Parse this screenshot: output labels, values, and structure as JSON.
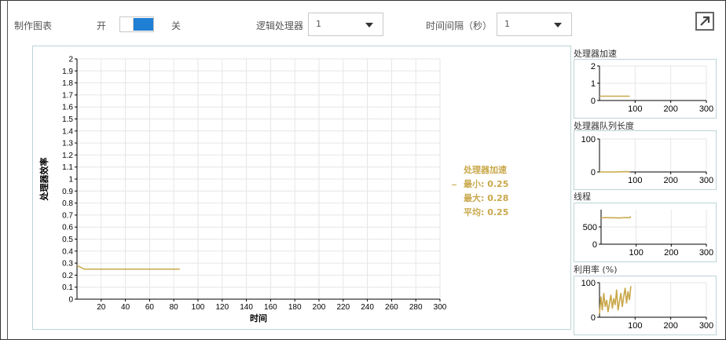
{
  "toolbar": {
    "chart_label": "制作图表",
    "toggle_on_label": "开",
    "toggle_off_label": "关",
    "processor_label": "逻辑处理器",
    "processor_value": "1",
    "interval_label": "时间间隔（秒）",
    "interval_value": "1"
  },
  "colors": {
    "series": "#c9a84b",
    "grid": "#e6e6e6",
    "panel_border": "#bcd3d6",
    "toggle_accent": "#1e7fd4"
  },
  "legend": {
    "series_name": "处理器加速",
    "min": "最小: 0.25",
    "max": "最大: 0.28",
    "avg": "平均: 0.25"
  },
  "chart_data": [
    {
      "type": "line",
      "xlabel": "时间",
      "ylabel": "处理器效率",
      "xlim": [
        0,
        300
      ],
      "ylim": [
        0,
        2
      ],
      "x_ticks": [
        20,
        40,
        60,
        80,
        100,
        120,
        140,
        160,
        180,
        200,
        220,
        240,
        260,
        280,
        300
      ],
      "y_ticks": [
        0,
        0.1,
        0.2,
        0.3,
        0.4,
        0.5,
        0.6,
        0.7,
        0.8,
        0.9,
        1,
        1.1,
        1.2,
        1.3,
        1.4,
        1.5,
        1.6,
        1.7,
        1.8,
        1.9,
        2
      ],
      "grid": true,
      "series": [
        {
          "name": "处理器加速",
          "x": [
            0,
            2,
            4,
            6,
            10,
            20,
            40,
            60,
            80,
            85
          ],
          "y": [
            0.28,
            0.27,
            0.26,
            0.25,
            0.25,
            0.25,
            0.25,
            0.25,
            0.25,
            0.25
          ]
        }
      ]
    },
    {
      "type": "line",
      "title": "处理器加速",
      "xlim": [
        0,
        300
      ],
      "ylim": [
        0,
        2
      ],
      "x_ticks": [
        100,
        200,
        300
      ],
      "y_ticks": [
        0,
        1,
        2
      ],
      "series": [
        {
          "x": [
            0,
            85
          ],
          "y": [
            0.25,
            0.25
          ]
        }
      ]
    },
    {
      "type": "line",
      "title": "处理器队列长度",
      "xlim": [
        0,
        300
      ],
      "ylim": [
        0,
        100
      ],
      "x_ticks": [
        100,
        200,
        300
      ],
      "y_ticks": [
        0,
        100
      ],
      "series": [
        {
          "x": [
            0,
            40,
            80,
            85
          ],
          "y": [
            0,
            0,
            1,
            0
          ]
        }
      ]
    },
    {
      "type": "line",
      "title": "线程",
      "xlim": [
        0,
        300
      ],
      "ylim": [
        0,
        1000
      ],
      "x_ticks": [
        100,
        200,
        300
      ],
      "y_ticks": [
        0,
        500
      ],
      "series": [
        {
          "x": [
            0,
            10,
            30,
            50,
            70,
            80,
            85
          ],
          "y": [
            760,
            770,
            765,
            760,
            770,
            765,
            800
          ]
        }
      ]
    },
    {
      "type": "line",
      "title": "利用率 (%)",
      "xlim": [
        0,
        300
      ],
      "ylim": [
        0,
        100
      ],
      "x_ticks": [
        100,
        200,
        300
      ],
      "y_ticks": [
        0,
        100
      ],
      "series": [
        {
          "x": [
            0,
            4,
            8,
            12,
            16,
            20,
            24,
            28,
            32,
            36,
            40,
            44,
            48,
            52,
            56,
            60,
            64,
            68,
            72,
            76,
            80,
            84,
            88
          ],
          "y": [
            10,
            60,
            20,
            70,
            30,
            50,
            15,
            40,
            65,
            25,
            55,
            35,
            80,
            20,
            45,
            70,
            30,
            60,
            85,
            40,
            75,
            50,
            90
          ]
        }
      ]
    }
  ]
}
